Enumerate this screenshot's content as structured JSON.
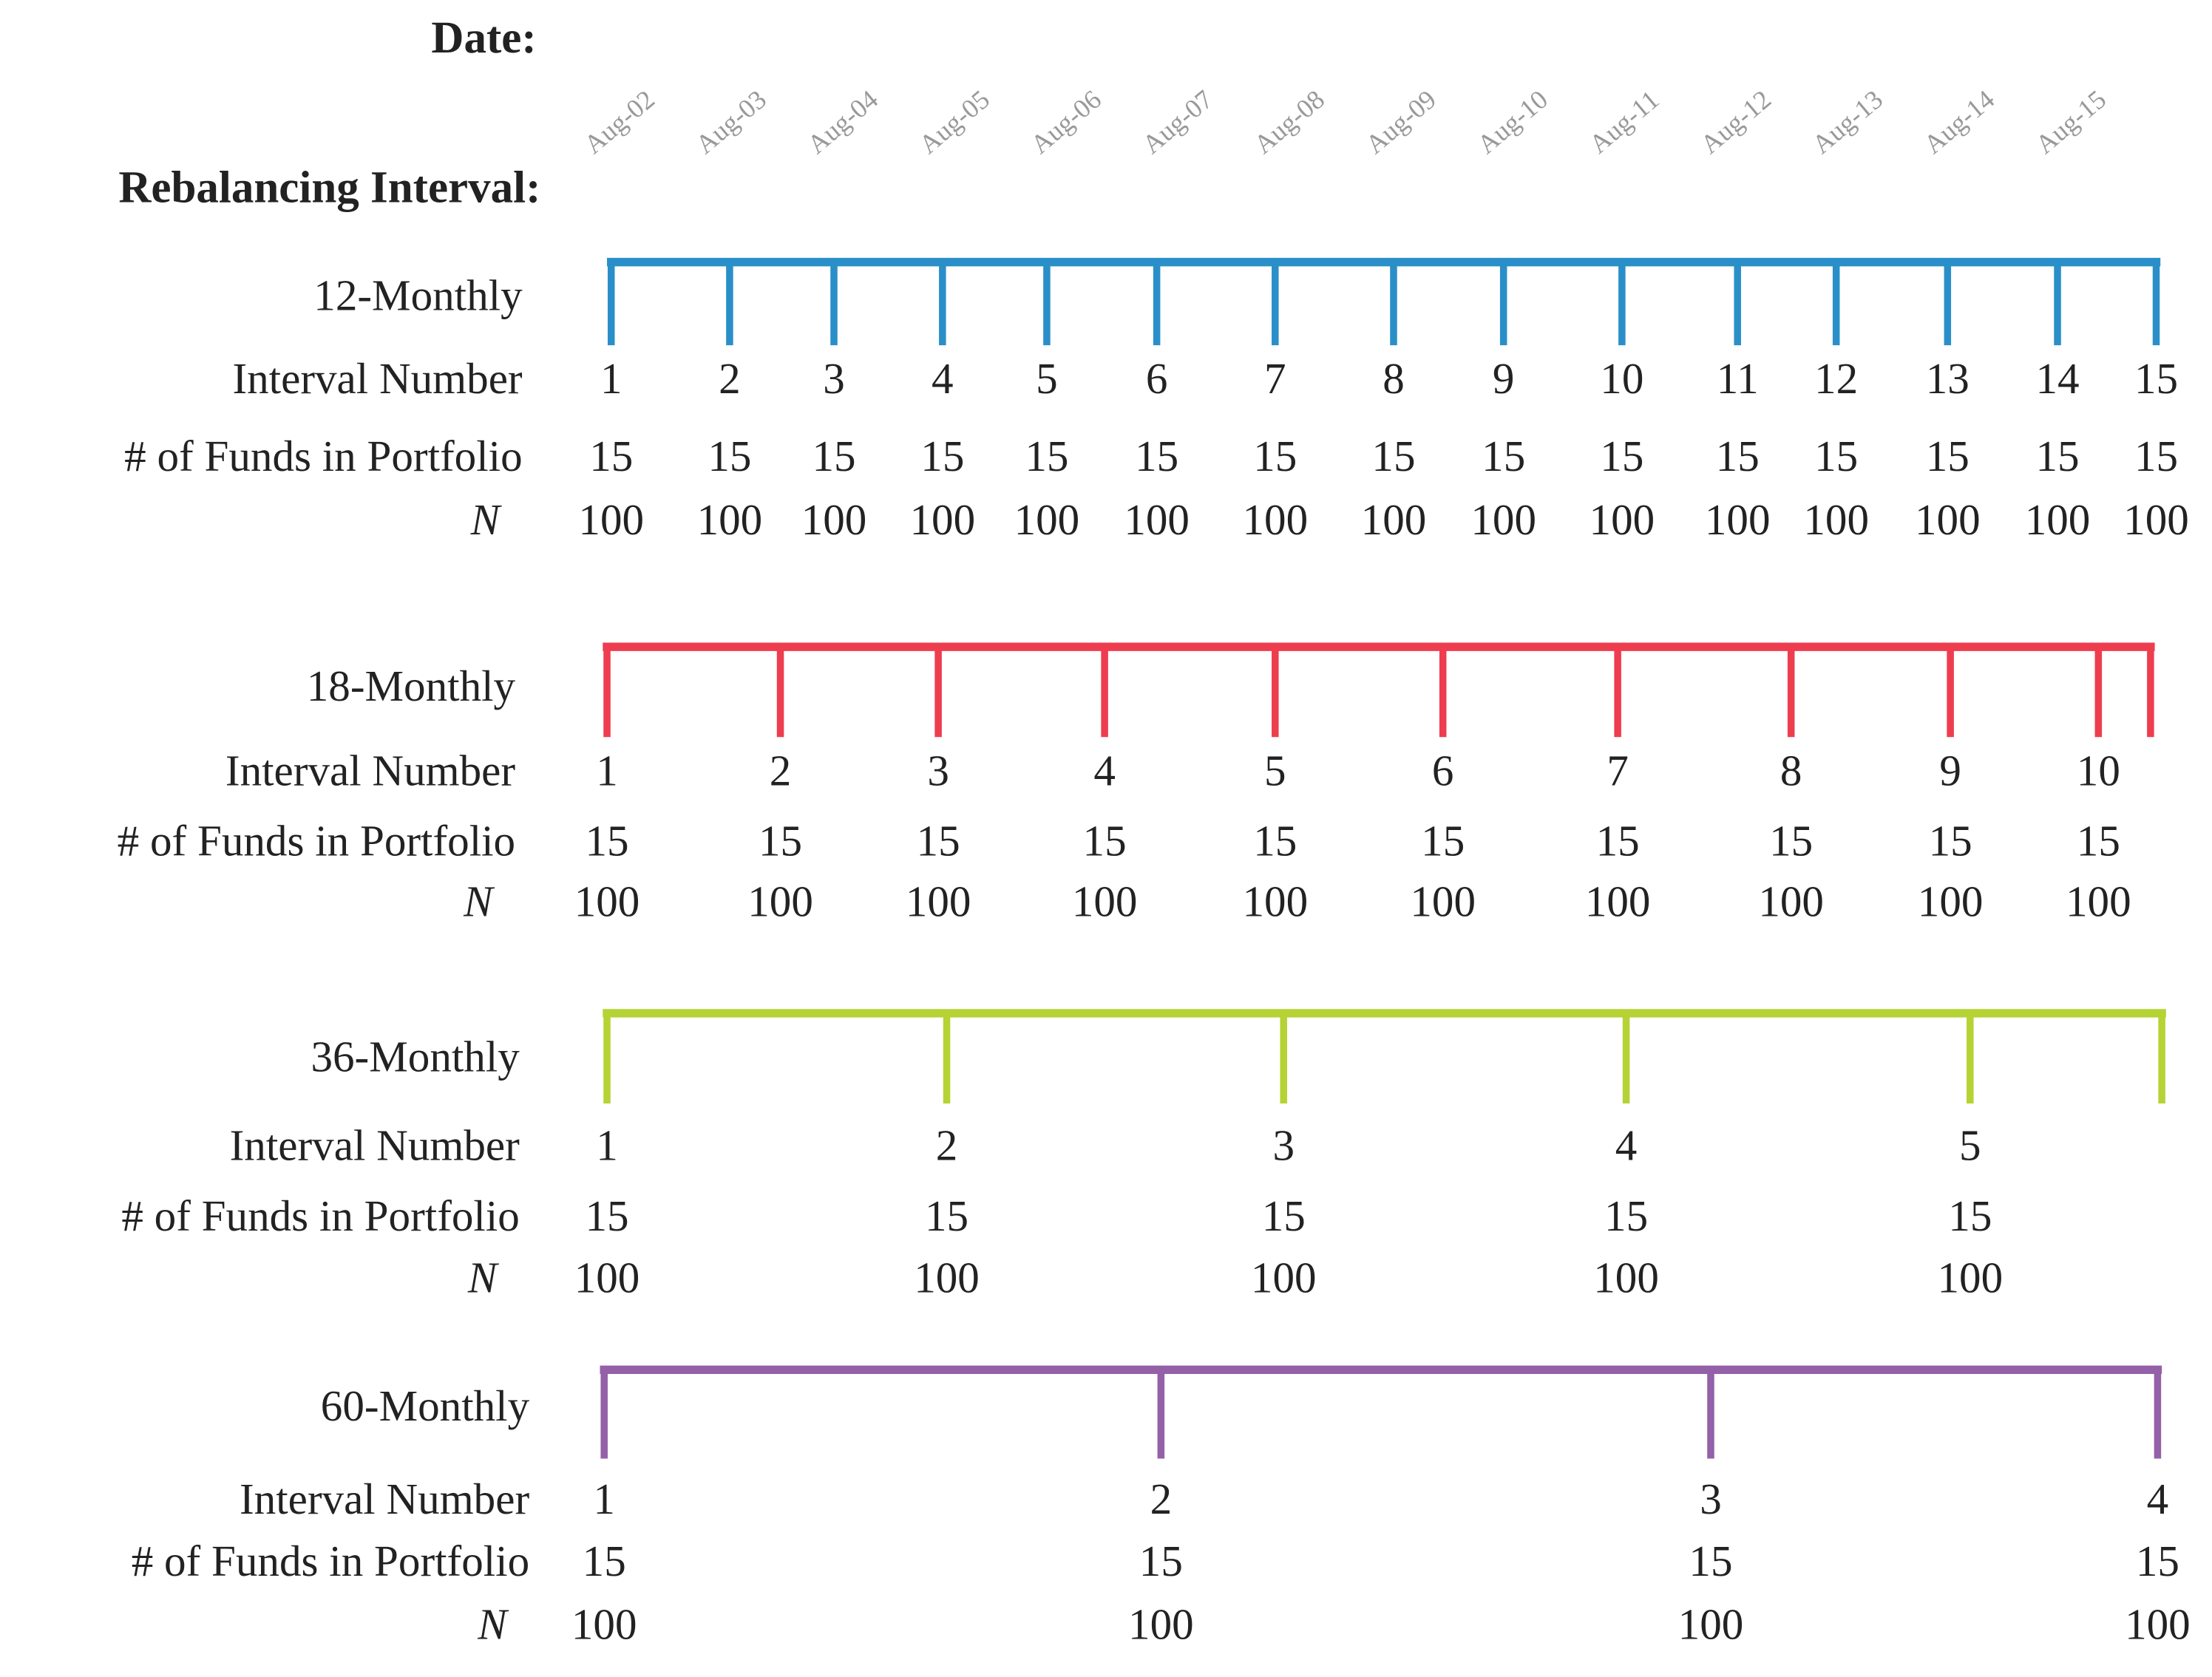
{
  "date_label": "Date:",
  "interval_label": "Rebalancing Interval:",
  "dates": [
    "Aug-02",
    "Aug-03",
    "Aug-04",
    "Aug-05",
    "Aug-06",
    "Aug-07",
    "Aug-08",
    "Aug-09",
    "Aug-10",
    "Aug-11",
    "Aug-12",
    "Aug-13",
    "Aug-14",
    "Aug-15"
  ],
  "panels": [
    {
      "name": "12-Monthly",
      "color": "#2a8fc8",
      "row_labels": [
        "Interval Number",
        "# of Funds in Portfolio",
        "N"
      ],
      "interval_numbers": [
        1,
        2,
        3,
        4,
        5,
        6,
        7,
        8,
        9,
        10,
        11,
        12,
        13,
        14,
        15
      ],
      "funds": [
        15,
        15,
        15,
        15,
        15,
        15,
        15,
        15,
        15,
        15,
        15,
        15,
        15,
        15,
        15
      ],
      "n": [
        100,
        100,
        100,
        100,
        100,
        100,
        100,
        100,
        100,
        100,
        100,
        100,
        100,
        100,
        100
      ]
    },
    {
      "name": "18-Monthly",
      "color": "#ee3d4f",
      "row_labels": [
        "Interval Number",
        "# of Funds in Portfolio",
        "N"
      ],
      "interval_numbers": [
        1,
        2,
        3,
        4,
        5,
        6,
        7,
        8,
        9,
        10
      ],
      "funds": [
        15,
        15,
        15,
        15,
        15,
        15,
        15,
        15,
        15,
        15
      ],
      "n": [
        100,
        100,
        100,
        100,
        100,
        100,
        100,
        100,
        100,
        100
      ]
    },
    {
      "name": "36-Monthly",
      "color": "#b5d334",
      "row_labels": [
        "Interval Number",
        "# of Funds in Portfolio",
        "N"
      ],
      "interval_numbers": [
        1,
        2,
        3,
        4,
        5
      ],
      "funds": [
        15,
        15,
        15,
        15,
        15
      ],
      "n": [
        100,
        100,
        100,
        100,
        100
      ]
    },
    {
      "name": "60-Monthly",
      "color": "#9460a8",
      "row_labels": [
        "Interval Number",
        "# of Funds in Portfolio",
        "N"
      ],
      "interval_numbers": [
        1,
        2,
        3,
        4
      ],
      "funds": [
        15,
        15,
        15,
        15
      ],
      "n": [
        100,
        100,
        100,
        100
      ]
    }
  ]
}
